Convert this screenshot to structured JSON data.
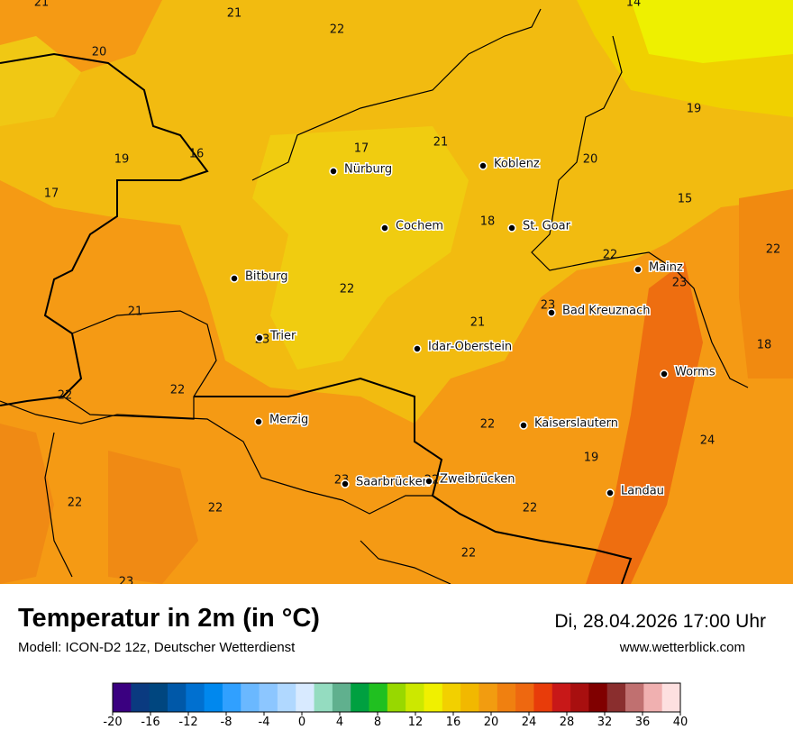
{
  "map": {
    "cities": [
      "Nürburg",
      "Koblenz",
      "Cochem",
      "St. Goar",
      "Mainz",
      "Bitburg",
      "Bad Kreuznach",
      "Trier",
      "Idar-Oberstein",
      "Worms",
      "Merzig",
      "Kaiserslautern",
      "Saarbrücken",
      "Zweibrücken",
      "Landau"
    ],
    "temperatures": [
      21,
      21,
      22,
      20,
      14,
      19,
      17,
      21,
      20,
      19,
      16,
      17,
      15,
      18,
      22,
      22,
      23,
      22,
      23,
      21,
      21,
      23,
      18,
      22,
      22,
      22,
      24,
      19,
      23,
      22,
      22,
      22,
      22,
      22,
      23
    ]
  },
  "footer": {
    "title": "Temperatur in 2m (in °C)",
    "model": "Modell: ICON-D2 12z, Deutscher Wetterdienst",
    "datetime": "Di, 28.04.2026 17:00 Uhr",
    "website": "www.wetterblick.com"
  },
  "colorbar": {
    "ticks": [
      -20,
      -16,
      -12,
      -8,
      -4,
      0,
      4,
      8,
      12,
      16,
      20,
      24,
      28,
      32,
      36,
      40
    ],
    "colors": [
      "#3a0080",
      "#0a3a80",
      "#00467f",
      "#0058a8",
      "#0070d0",
      "#0088ee",
      "#30a0ff",
      "#6ab8ff",
      "#8cc6ff",
      "#b0d8ff",
      "#d8eaff",
      "#94dcc0",
      "#60b08e",
      "#00a040",
      "#20c020",
      "#98d800",
      "#cce800",
      "#f0f000",
      "#f2d000",
      "#f2b800",
      "#f29c10",
      "#f08010",
      "#ee6810",
      "#e83c0a",
      "#c81818",
      "#a80f0f",
      "#800000",
      "#8a2e2e",
      "#c07070",
      "#f0b0b0",
      "#fde0e0"
    ]
  }
}
